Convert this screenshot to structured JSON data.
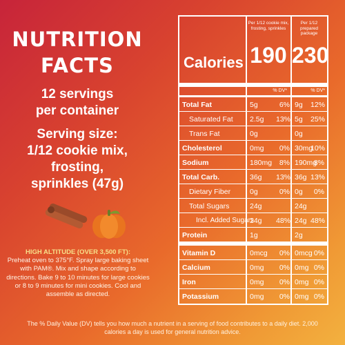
{
  "left": {
    "title_line1": "NUTRITION",
    "title_line2": "FACTS",
    "servings_line1": "12 servings",
    "servings_line2": "per container",
    "serving_size_line1": "Serving size:",
    "serving_size_line2": "1/12 cookie mix,",
    "serving_size_line3": "frosting,",
    "serving_size_line4": "sprinkles (47g)",
    "altitude_title": "HIGH ALTITUDE (OVER 3,500 FT):",
    "altitude_body": "Preheat oven to 375°F. Spray large baking sheet with PAM®. Mix and shape according to directions. Bake 9 to 10 minutes for large cookies or 8 to 9 minutes for mini cookies. Cool and assemble as directed.",
    "illustration_icons": [
      "cinnamon-sticks-icon",
      "pumpkin-icon"
    ]
  },
  "table": {
    "col1_header": "Per 1/12 cookie mix, frosting, sprinkles",
    "col2_header": "Per 1/12 prepared package",
    "calories_label": "Calories",
    "calories_1": "190",
    "calories_2": "230",
    "dv_label_1": "% DV*",
    "dv_label_2": "% DV*",
    "rows": [
      {
        "label": "Total Fat",
        "a1": "5g",
        "p1": "6%",
        "a2": "9g",
        "p2": "12%"
      },
      {
        "label": "Saturated Fat",
        "a1": "2.5g",
        "p1": "13%",
        "a2": "5g",
        "p2": "25%"
      },
      {
        "label": "Trans Fat",
        "a1": "0g",
        "p1": "",
        "a2": "0g",
        "p2": ""
      },
      {
        "label": "Cholesterol",
        "a1": "0mg",
        "p1": "0%",
        "a2": "30mg",
        "p2": "10%"
      },
      {
        "label": "Sodium",
        "a1": "180mg",
        "p1": "8%",
        "a2": "190mg",
        "p2": "8%"
      },
      {
        "label": "Total Carb.",
        "a1": "36g",
        "p1": "13%",
        "a2": "36g",
        "p2": "13%"
      },
      {
        "label": "Dietary Fiber",
        "a1": "0g",
        "p1": "0%",
        "a2": "0g",
        "p2": "0%"
      },
      {
        "label": "Total Sugars",
        "a1": "24g",
        "p1": "",
        "a2": "24g",
        "p2": ""
      },
      {
        "label": "Incl. Added Sugars",
        "a1": "24g",
        "p1": "48%",
        "a2": "24g",
        "p2": "48%"
      },
      {
        "label": "Protein",
        "a1": "1g",
        "p1": "",
        "a2": "2g",
        "p2": ""
      },
      {
        "label": "Vitamin D",
        "a1": "0mcg",
        "p1": "0%",
        "a2": "0mcg",
        "p2": "0%"
      },
      {
        "label": "Calcium",
        "a1": "0mg",
        "p1": "0%",
        "a2": "0mg",
        "p2": "0%"
      },
      {
        "label": "Iron",
        "a1": "0mg",
        "p1": "0%",
        "a2": "0mg",
        "p2": "0%"
      },
      {
        "label": "Potassium",
        "a1": "0mg",
        "p1": "0%",
        "a2": "0mg",
        "p2": "0%"
      }
    ]
  },
  "footnote": "The % Daily Value (DV) tells you how much a nutrient in a serving of food contributes to a daily diet. 2,000 calories a day is used for general nutrition advice.",
  "colors": {
    "gradient_start": "#c7243a",
    "gradient_end": "#f3b13f",
    "altitude_title": "#f7e08a",
    "text": "#ffffff"
  }
}
